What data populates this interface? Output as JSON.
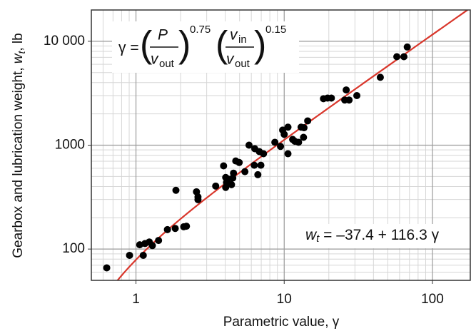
{
  "chart_data": {
    "type": "scatter",
    "xlabel": "Parametric value, γ",
    "ylabel": [
      "Gearbox and lubrication weight, ",
      "w",
      "t",
      ", lb"
    ],
    "x": [
      0.635,
      0.905,
      1.06,
      1.12,
      1.15,
      1.23,
      1.29,
      1.42,
      1.63,
      1.84,
      1.86,
      2.1,
      2.19,
      2.56,
      2.62,
      2.62,
      3.45,
      3.9,
      4.03,
      4.08,
      4.03,
      4.17,
      4.41,
      4.5,
      4.55,
      4.71,
      4.97,
      5.43,
      5.79,
      6.33,
      6.28,
      6.64,
      6.79,
      6.96,
      7.25,
      8.65,
      9.44,
      9.76,
      10,
      10.6,
      10.6,
      11.4,
      11.8,
      12.5,
      13,
      13.5,
      13.6,
      14.4,
      18.4,
      19.6,
      20.8,
      25.6,
      26.2,
      27.4,
      30.9,
      44.5,
      57.5,
      64.2,
      67.6
    ],
    "values": [
      66,
      87,
      110,
      87,
      113,
      117,
      108,
      121,
      154,
      158,
      368,
      164,
      166,
      356,
      318,
      299,
      404,
      632,
      489,
      437,
      392,
      473,
      417,
      483,
      538,
      705,
      681,
      556,
      1000,
      924,
      641,
      520,
      868,
      641,
      827,
      1066,
      973,
      1396,
      1271,
      1490,
      827,
      1136,
      1089,
      1066,
      1490,
      1190,
      1472,
      1713,
      2800,
      2840,
      2840,
      2720,
      3400,
      2720,
      3000,
      4500,
      7100,
      7100,
      8800
    ],
    "color": "#000000",
    "xlim": [
      0.5,
      180
    ],
    "ylim": [
      50,
      20000
    ],
    "xticks": [
      1,
      10,
      100
    ],
    "yticks": [
      100,
      1000,
      {
        "value": 10000,
        "label": "10 000"
      }
    ],
    "log_x": true,
    "log_y": true,
    "grid": true,
    "minor_grid": true,
    "fit": {
      "intercept": -37.4,
      "slope": 116.3,
      "color": "#d9362b"
    },
    "fit_label": [
      "w",
      "t",
      " = –37.4 + 116.3 γ"
    ],
    "formula": [
      "γ = ",
      "P",
      "v",
      "out",
      "0.75",
      "v",
      "in",
      "v",
      "out",
      "0.15"
    ]
  }
}
